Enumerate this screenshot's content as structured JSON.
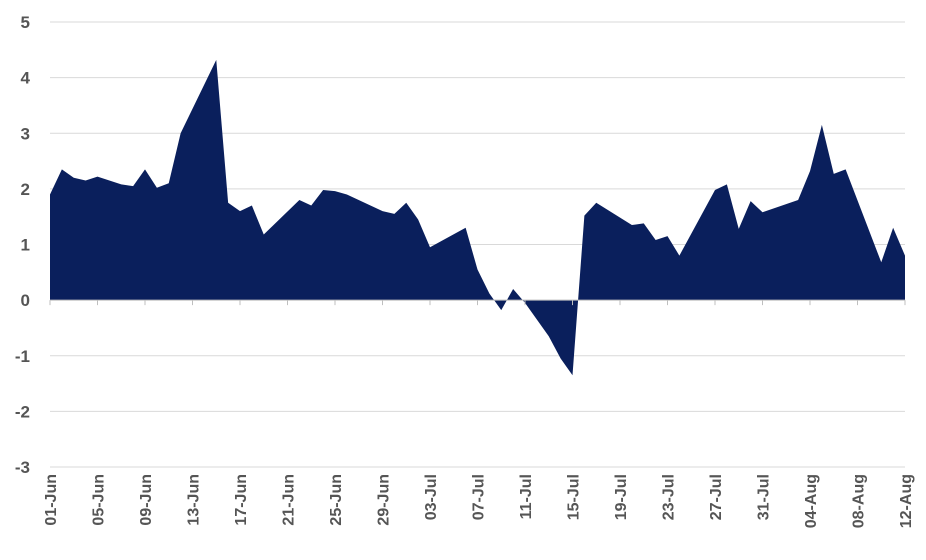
{
  "chart_data": {
    "type": "area",
    "title": "",
    "xlabel": "",
    "ylabel": "",
    "ylim": [
      -3,
      5
    ],
    "yticks": [
      -3,
      -2,
      -1,
      0,
      1,
      2,
      3,
      4,
      5
    ],
    "grid": true,
    "legend": "none",
    "x_tick_labels": [
      "01-Jun",
      "05-Jun",
      "09-Jun",
      "13-Jun",
      "17-Jun",
      "21-Jun",
      "25-Jun",
      "29-Jun",
      "03-Jul",
      "07-Jul",
      "11-Jul",
      "15-Jul",
      "19-Jul",
      "23-Jul",
      "27-Jul",
      "31-Jul",
      "04-Aug",
      "08-Aug",
      "12-Aug"
    ],
    "x_start": "2024-06-01",
    "x_end": "2024-08-12",
    "color": "#0a1f5c",
    "series": [
      {
        "x": [
          "2024-06-01",
          "2024-06-02",
          "2024-06-03",
          "2024-06-04",
          "2024-06-05",
          "2024-06-06",
          "2024-06-07",
          "2024-06-08",
          "2024-06-09",
          "2024-06-10",
          "2024-06-11",
          "2024-06-12",
          "2024-06-15",
          "2024-06-16",
          "2024-06-17",
          "2024-06-18",
          "2024-06-19",
          "2024-06-22",
          "2024-06-23",
          "2024-06-24",
          "2024-06-25",
          "2024-06-26",
          "2024-06-29",
          "2024-06-30",
          "2024-07-01",
          "2024-07-02",
          "2024-07-03",
          "2024-07-06",
          "2024-07-07",
          "2024-07-08",
          "2024-07-09",
          "2024-07-10",
          "2024-07-11",
          "2024-07-13",
          "2024-07-14",
          "2024-07-15",
          "2024-07-16",
          "2024-07-17",
          "2024-07-20",
          "2024-07-21",
          "2024-07-22",
          "2024-07-23",
          "2024-07-24",
          "2024-07-27",
          "2024-07-28",
          "2024-07-29",
          "2024-07-30",
          "2024-07-31",
          "2024-08-03",
          "2024-08-04",
          "2024-08-05",
          "2024-08-06",
          "2024-08-07",
          "2024-08-10",
          "2024-08-11",
          "2024-08-12"
        ],
        "values": [
          1.9,
          2.35,
          2.2,
          2.15,
          2.22,
          2.15,
          2.08,
          2.05,
          2.35,
          2.02,
          2.1,
          3.0,
          4.32,
          1.75,
          1.6,
          1.7,
          1.18,
          1.8,
          1.7,
          1.98,
          1.96,
          1.9,
          1.6,
          1.55,
          1.75,
          1.45,
          0.95,
          1.3,
          0.55,
          0.12,
          -0.18,
          0.2,
          -0.05,
          -0.65,
          -1.05,
          -1.35,
          1.52,
          1.75,
          1.35,
          1.38,
          1.08,
          1.15,
          0.8,
          1.98,
          2.08,
          1.28,
          1.78,
          1.58,
          1.8,
          2.32,
          3.15,
          2.27,
          2.35,
          0.68,
          1.3,
          0.8
        ]
      }
    ]
  }
}
